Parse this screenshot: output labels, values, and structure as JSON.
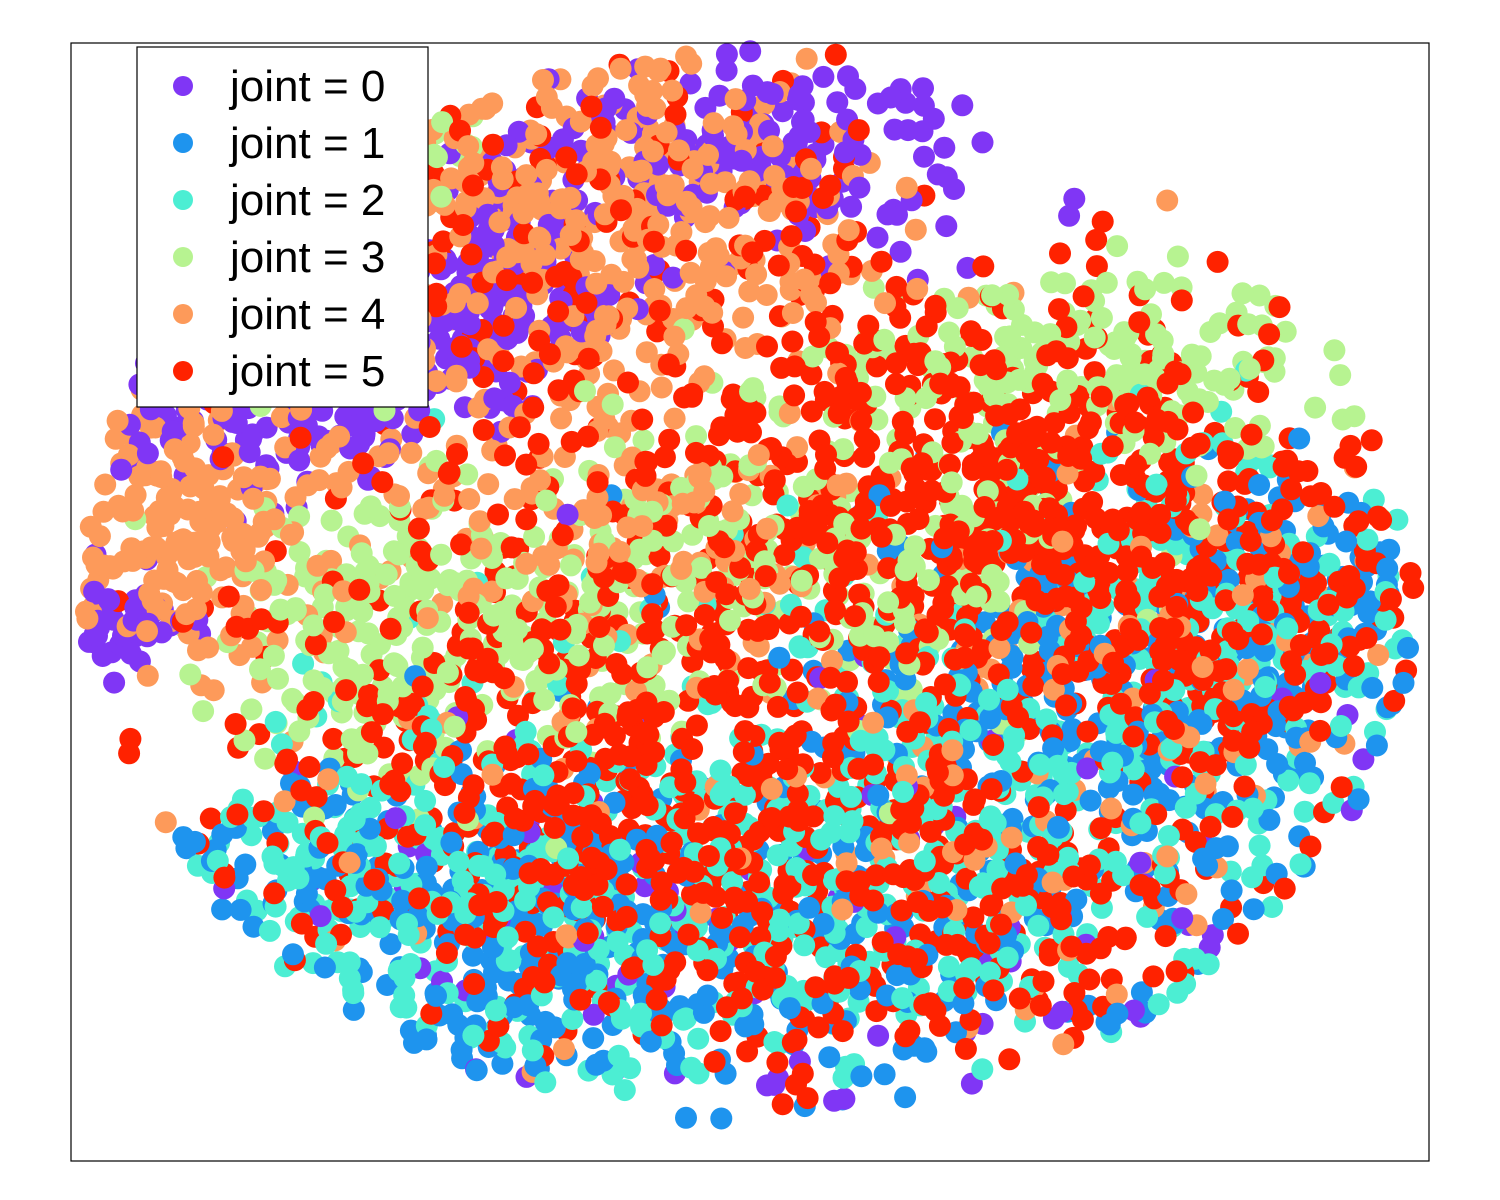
{
  "chart_data": {
    "type": "scatter",
    "title": "",
    "xlabel": "",
    "ylabel": "",
    "xlim": [
      -100,
      100
    ],
    "ylim": [
      -100,
      100
    ],
    "grid": false,
    "axis_ticks": false,
    "legend_position": "top-left",
    "series": [
      {
        "name": "joint = 0",
        "color": "#8036f5",
        "clusters": [
          {
            "cx": -72,
            "cy": 38,
            "sx": 15,
            "sy": 9,
            "n": 190
          },
          {
            "cx": -38,
            "cy": 55,
            "sx": 10,
            "sy": 10,
            "n": 150
          },
          {
            "cx": 0,
            "cy": 80,
            "sx": 20,
            "sy": 9,
            "n": 170
          },
          {
            "cx": -95,
            "cy": -4,
            "sx": 6,
            "sy": 5,
            "n": 45
          },
          {
            "cx": 0,
            "cy": -55,
            "sx": 60,
            "sy": 22,
            "n": 110
          }
        ]
      },
      {
        "name": "joint = 1",
        "color": "#1e94ee",
        "clusters": [
          {
            "cx": 55,
            "cy": -18,
            "sx": 22,
            "sy": 18,
            "n": 260
          },
          {
            "cx": -5,
            "cy": -62,
            "sx": 38,
            "sy": 18,
            "n": 290
          },
          {
            "cx": -45,
            "cy": -52,
            "sx": 20,
            "sy": 14,
            "n": 150
          },
          {
            "cx": 80,
            "cy": 5,
            "sx": 10,
            "sy": 12,
            "n": 90
          }
        ]
      },
      {
        "name": "joint = 2",
        "color": "#4ceed3",
        "clusters": [
          {
            "cx": 35,
            "cy": -35,
            "sx": 28,
            "sy": 22,
            "n": 270
          },
          {
            "cx": -15,
            "cy": -58,
            "sx": 35,
            "sy": 18,
            "n": 300
          },
          {
            "cx": 70,
            "cy": 0,
            "sx": 15,
            "sy": 15,
            "n": 140
          },
          {
            "cx": -55,
            "cy": -45,
            "sx": 18,
            "sy": 12,
            "n": 110
          }
        ]
      },
      {
        "name": "joint = 3",
        "color": "#b7f391",
        "clusters": [
          {
            "cx": -45,
            "cy": -5,
            "sx": 18,
            "sy": 13,
            "n": 260
          },
          {
            "cx": 15,
            "cy": 10,
            "sx": 25,
            "sy": 16,
            "n": 220
          },
          {
            "cx": 50,
            "cy": 42,
            "sx": 18,
            "sy": 9,
            "n": 160
          },
          {
            "cx": -60,
            "cy": 85,
            "sx": 10,
            "sy": 6,
            "n": 30
          }
        ]
      },
      {
        "name": "joint = 4",
        "color": "#fd9a5a",
        "clusters": [
          {
            "cx": -22,
            "cy": 68,
            "sx": 22,
            "sy": 15,
            "n": 360
          },
          {
            "cx": -82,
            "cy": 15,
            "sx": 10,
            "sy": 13,
            "n": 180
          },
          {
            "cx": -20,
            "cy": 15,
            "sx": 22,
            "sy": 13,
            "n": 160
          },
          {
            "cx": 10,
            "cy": -40,
            "sx": 45,
            "sy": 20,
            "n": 90
          },
          {
            "cx": 65,
            "cy": -5,
            "sx": 20,
            "sy": 18,
            "n": 60
          }
        ]
      },
      {
        "name": "joint = 5",
        "color": "#ff2200",
        "clusters": [
          {
            "cx": 10,
            "cy": 0,
            "sx": 38,
            "sy": 30,
            "n": 560
          },
          {
            "cx": 42,
            "cy": 22,
            "sx": 24,
            "sy": 16,
            "n": 330
          },
          {
            "cx": -32,
            "cy": -35,
            "sx": 24,
            "sy": 18,
            "n": 280
          },
          {
            "cx": 20,
            "cy": -55,
            "sx": 30,
            "sy": 16,
            "n": 260
          },
          {
            "cx": 70,
            "cy": -5,
            "sx": 14,
            "sy": 18,
            "n": 150
          },
          {
            "cx": -25,
            "cy": 65,
            "sx": 25,
            "sy": 16,
            "n": 120
          }
        ]
      }
    ]
  }
}
